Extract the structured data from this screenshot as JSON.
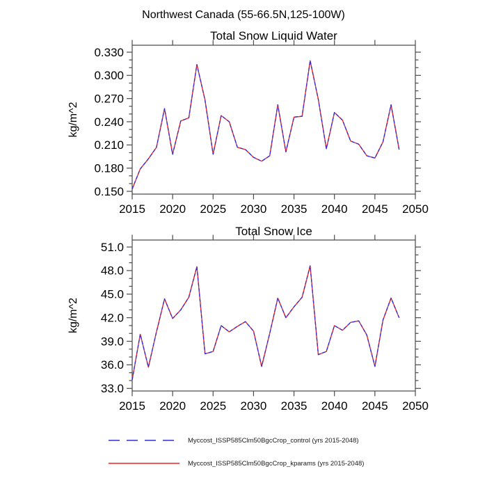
{
  "header": {
    "title": "Northwest Canada (55-66.5N,125-100W)"
  },
  "style": {
    "frame_color": "#555555",
    "tick_color": "#4a4a4a",
    "text_color": "#000000",
    "control_color": "#2d2ddd",
    "kparams_color": "#ee2222"
  },
  "legend": {
    "items": [
      {
        "label": "Myccost_ISSP585Clm50BgcCrop_control (yrs 2015-2048)",
        "color": "#2d2ddd",
        "line_style": "dashed"
      },
      {
        "label": "Myccost_ISSP585Clm50BgcCrop_kparams (yrs 2015-2048)",
        "color": "#ee2222",
        "line_style": "solid"
      }
    ]
  },
  "chart_data": [
    {
      "type": "line",
      "title": "Total Snow Liquid Water",
      "xlabel": "",
      "ylabel": "kg/m^2",
      "grid": false,
      "legend_position": "below-figure",
      "xlim": [
        2015,
        2050
      ],
      "ylim": [
        0.1464,
        0.339
      ],
      "x_ticks": [
        2015,
        2020,
        2025,
        2030,
        2035,
        2040,
        2045,
        2050
      ],
      "y_ticks": [
        {
          "value": 0.15,
          "label": "0.150"
        },
        {
          "value": 0.18,
          "label": "0.180"
        },
        {
          "value": 0.21,
          "label": "0.210"
        },
        {
          "value": 0.24,
          "label": "0.240"
        },
        {
          "value": 0.27,
          "label": "0.270"
        },
        {
          "value": 0.3,
          "label": "0.300"
        },
        {
          "value": 0.33,
          "label": "0.330"
        }
      ],
      "y_minor": {
        "from": 0.15,
        "to": 0.33,
        "step": 0.01
      },
      "x": [
        2015,
        2016,
        2017,
        2018,
        2019,
        2020,
        2021,
        2022,
        2023,
        2024,
        2025,
        2026,
        2027,
        2028,
        2029,
        2030,
        2031,
        2032,
        2033,
        2034,
        2035,
        2036,
        2037,
        2038,
        2039,
        2040,
        2041,
        2042,
        2043,
        2044,
        2045,
        2046,
        2047,
        2048
      ],
      "series": [
        {
          "name": "Myccost_ISSP585Clm50BgcCrop_kparams",
          "color": "#ee2222",
          "dash": "",
          "values": [
            0.153,
            0.179,
            0.192,
            0.207,
            0.257,
            0.198,
            0.241,
            0.245,
            0.314,
            0.268,
            0.198,
            0.248,
            0.24,
            0.207,
            0.204,
            0.194,
            0.189,
            0.196,
            0.262,
            0.201,
            0.246,
            0.247,
            0.319,
            0.269,
            0.205,
            0.252,
            0.242,
            0.215,
            0.211,
            0.196,
            0.193,
            0.214,
            0.262,
            0.204
          ]
        },
        {
          "name": "Myccost_ISSP585Clm50BgcCrop_control",
          "color": "#2d2ddd",
          "dash": "4.5 3.2",
          "values": [
            0.153,
            0.179,
            0.192,
            0.207,
            0.257,
            0.198,
            0.241,
            0.245,
            0.314,
            0.268,
            0.198,
            0.248,
            0.24,
            0.207,
            0.204,
            0.194,
            0.189,
            0.196,
            0.262,
            0.201,
            0.246,
            0.247,
            0.319,
            0.269,
            0.205,
            0.252,
            0.242,
            0.215,
            0.211,
            0.196,
            0.193,
            0.214,
            0.262,
            0.204
          ]
        }
      ]
    },
    {
      "type": "line",
      "title": "Total Snow Ice",
      "xlabel": "",
      "ylabel": "kg/m^2",
      "grid": false,
      "legend_position": "below-figure",
      "xlim": [
        2015,
        2050
      ],
      "ylim": [
        32.67,
        51.89
      ],
      "x_ticks": [
        2015,
        2020,
        2025,
        2030,
        2035,
        2040,
        2045,
        2050
      ],
      "y_ticks": [
        {
          "value": 33.0,
          "label": "33.0"
        },
        {
          "value": 36.0,
          "label": "36.0"
        },
        {
          "value": 39.0,
          "label": "39.0"
        },
        {
          "value": 42.0,
          "label": "42.0"
        },
        {
          "value": 45.0,
          "label": "45.0"
        },
        {
          "value": 48.0,
          "label": "48.0"
        },
        {
          "value": 51.0,
          "label": "51.0"
        }
      ],
      "y_minor": {
        "from": 33.0,
        "to": 51.0,
        "step": 1.0
      },
      "x": [
        2015,
        2016,
        2017,
        2018,
        2019,
        2020,
        2021,
        2022,
        2023,
        2024,
        2025,
        2026,
        2027,
        2028,
        2029,
        2030,
        2031,
        2032,
        2033,
        2034,
        2035,
        2036,
        2037,
        2038,
        2039,
        2040,
        2041,
        2042,
        2043,
        2044,
        2045,
        2046,
        2047,
        2048
      ],
      "series": [
        {
          "name": "Myccost_ISSP585Clm50BgcCrop_kparams",
          "color": "#ee2222",
          "dash": "",
          "values": [
            34.1,
            39.9,
            35.7,
            40.2,
            44.4,
            41.9,
            43.0,
            44.6,
            48.5,
            37.4,
            37.7,
            41.0,
            40.2,
            40.9,
            41.5,
            40.3,
            35.8,
            40.0,
            44.5,
            42.0,
            43.4,
            44.6,
            48.6,
            37.3,
            37.7,
            41.0,
            40.4,
            41.4,
            41.6,
            39.8,
            35.8,
            41.7,
            44.5,
            42.0
          ]
        },
        {
          "name": "Myccost_ISSP585Clm50BgcCrop_control",
          "color": "#2d2ddd",
          "dash": "4.5 3.2",
          "values": [
            34.1,
            39.9,
            35.7,
            40.2,
            44.4,
            41.9,
            43.0,
            44.6,
            48.5,
            37.4,
            37.7,
            41.0,
            40.2,
            40.9,
            41.5,
            40.3,
            35.8,
            40.0,
            44.5,
            42.0,
            43.4,
            44.6,
            48.6,
            37.3,
            37.7,
            41.0,
            40.4,
            41.4,
            41.6,
            39.8,
            35.8,
            41.7,
            44.5,
            42.0
          ]
        }
      ]
    }
  ]
}
